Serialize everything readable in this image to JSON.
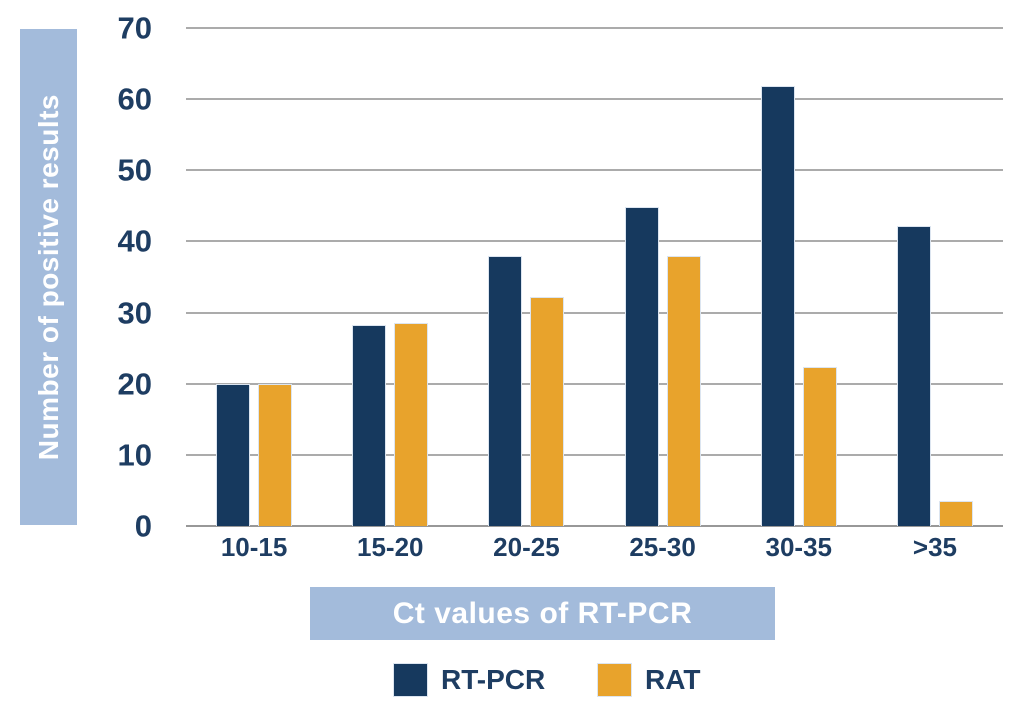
{
  "chart_data": {
    "type": "bar",
    "title": "",
    "categories": [
      "10-15",
      "15-20",
      "20-25",
      "25-30",
      "30-35",
      ">35"
    ],
    "series": [
      {
        "name": "RT-PCR",
        "color": "#16395E",
        "values": [
          20,
          28.3,
          37.9,
          44.8,
          61.8,
          42.2
        ]
      },
      {
        "name": "RAT",
        "color": "#E8A32C",
        "values": [
          20,
          28.5,
          32.2,
          37.9,
          22.4,
          3.5
        ]
      }
    ],
    "xlabel": "Ct values of RT-PCR",
    "ylabel": "Number of positive results",
    "ylim": [
      0,
      70
    ],
    "ytick_step": 10,
    "yticks": [
      0,
      10,
      20,
      30,
      40,
      50,
      60,
      70
    ],
    "grid": true,
    "legend_position": "bottom",
    "colors": {
      "text": "#1E3D62",
      "gridline": "#ABABAB",
      "baseline": "#989898",
      "band": "#A3BBDB",
      "band_text": "#FFFFFF"
    }
  }
}
